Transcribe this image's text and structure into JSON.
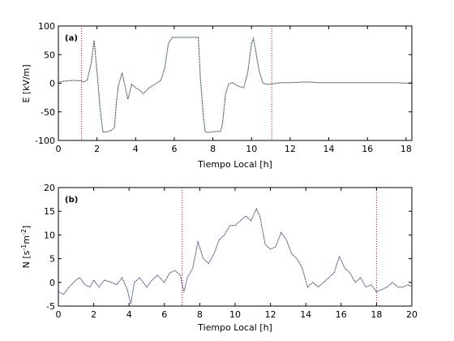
{
  "chart_data": [
    {
      "type": "line",
      "panel_label": "(a)",
      "xlabel": "Tiempo Local [h]",
      "ylabel": "E  [kV/m]",
      "xlim": [
        0,
        18.3
      ],
      "ylim": [
        -100,
        100
      ],
      "xticks": [
        0,
        2,
        4,
        6,
        8,
        10,
        12,
        14,
        16,
        18
      ],
      "yticks": [
        -100,
        -50,
        0,
        50,
        100
      ],
      "grid": false,
      "series": [
        {
          "color": "#1a3a2a",
          "style": "dotted",
          "x": [
            0,
            0.4,
            0.8,
            1.2,
            1.3,
            1.5,
            1.7,
            1.85,
            2.0,
            2.15,
            2.3,
            2.5,
            2.7,
            2.9,
            3.0,
            3.1,
            3.3,
            3.45,
            3.6,
            3.8,
            4.0,
            4.2,
            4.4,
            4.7,
            5.0,
            5.3,
            5.5,
            5.7,
            5.9,
            6.5,
            7.0,
            7.25,
            7.35,
            7.5,
            7.6,
            7.7,
            8.0,
            8.4,
            8.5,
            8.65,
            8.8,
            9.0,
            9.3,
            9.6,
            9.8,
            10.0,
            10.1,
            10.2,
            10.4,
            10.6,
            10.8,
            11.1,
            11.5,
            12.0,
            12.7,
            13.0,
            13.5,
            14.5,
            15.5,
            16.5,
            17.5,
            18.0,
            18.3
          ],
          "y": [
            2,
            4,
            5,
            4,
            2,
            6,
            35,
            75,
            20,
            -40,
            -85,
            -85,
            -83,
            -78,
            -35,
            -5,
            18,
            -5,
            -28,
            -2,
            -8,
            -12,
            -18,
            -8,
            -2,
            5,
            25,
            70,
            80,
            80,
            80,
            80,
            10,
            -55,
            -85,
            -86,
            -85,
            -84,
            -70,
            -20,
            -2,
            1,
            -5,
            -8,
            18,
            70,
            78,
            60,
            20,
            0,
            -2,
            -1,
            1,
            1,
            2,
            2,
            1,
            1,
            1,
            1,
            1,
            0,
            1
          ]
        }
      ],
      "vlines": [
        1.2,
        11.05
      ],
      "vline_color": "#d40000"
    },
    {
      "type": "line",
      "panel_label": "(b)",
      "xlabel": "Tiempo Local [h]",
      "ylabel": "N  [s",
      "ylabel_sup1": "-1",
      "ylabel_mid": "m",
      "ylabel_sup2": "-2",
      "ylabel_end": "]",
      "xlim": [
        0,
        20
      ],
      "ylim": [
        -5,
        20
      ],
      "xticks": [
        0,
        2,
        4,
        6,
        8,
        10,
        12,
        14,
        16,
        18,
        20
      ],
      "yticks": [
        -5,
        0,
        5,
        10,
        15,
        20
      ],
      "grid": false,
      "series": [
        {
          "color": "#2a3a6a",
          "style": "dotted",
          "x": [
            0,
            0.3,
            0.6,
            1.0,
            1.2,
            1.5,
            1.8,
            2.0,
            2.3,
            2.6,
            3.0,
            3.3,
            3.6,
            3.9,
            4.1,
            4.3,
            4.6,
            5.0,
            5.3,
            5.6,
            6.0,
            6.3,
            6.6,
            6.9,
            7.1,
            7.3,
            7.6,
            7.9,
            8.2,
            8.5,
            8.8,
            9.1,
            9.4,
            9.7,
            10.0,
            10.3,
            10.6,
            10.9,
            11.2,
            11.4,
            11.7,
            12.0,
            12.3,
            12.6,
            12.9,
            13.2,
            13.5,
            13.8,
            14.1,
            14.4,
            14.7,
            15.0,
            15.3,
            15.6,
            15.9,
            16.2,
            16.5,
            16.8,
            17.1,
            17.4,
            17.7,
            18.0,
            18.3,
            18.6,
            18.9,
            19.2,
            19.5,
            19.8,
            20.0
          ],
          "y": [
            -2,
            -2.5,
            -1,
            0.5,
            1,
            -0.5,
            -1,
            0.5,
            -1,
            0.5,
            0,
            -0.5,
            1,
            -1.5,
            -4.5,
            0,
            1,
            -1,
            0.5,
            1.5,
            0,
            2,
            2.5,
            1.5,
            -2,
            1,
            3,
            8.5,
            5,
            4,
            6,
            9,
            10,
            12,
            12,
            13,
            14,
            13,
            15.5,
            14,
            8,
            7,
            7.5,
            10.5,
            9,
            6,
            5,
            3,
            -1,
            0,
            -1,
            0,
            1,
            2,
            5.5,
            3,
            2,
            0,
            1,
            -1,
            -0.5,
            -2,
            -1.5,
            -1,
            0,
            -1,
            -1,
            -0.5,
            -1
          ]
        }
      ],
      "vlines": [
        7,
        18
      ],
      "vline_color": "#d40000"
    }
  ]
}
